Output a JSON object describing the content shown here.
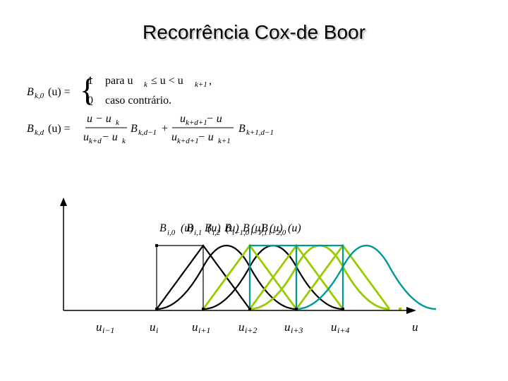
{
  "title": "Recorrência Cox-de Boor",
  "formula": {
    "lhs1": "B",
    "lhs1_sub": "k,0",
    "lhs1_arg": "(u) =",
    "case1_val": "1",
    "case1_cond_a": "para u",
    "case1_cond_b": "k",
    "case1_cond_c": "≤ u < u",
    "case1_cond_d": "k+1",
    "case1_cond_e": ",",
    "case2_val": "0",
    "case2_cond": "caso contrário.",
    "lhs2": "B",
    "lhs2_sub": "k,d",
    "lhs2_arg": "(u) =",
    "frac1_num": "u − u",
    "frac1_num_sub": "k",
    "frac1_den": "u",
    "frac1_den_sub1": "k+d",
    "frac1_den_mid": " − u",
    "frac1_den_sub2": "k",
    "term1": "B",
    "term1_sub": "k,d−1",
    "plus": "+",
    "frac2_num": "u",
    "frac2_num_sub": "k+d+1",
    "frac2_num_mid": " − u",
    "frac2_den": "u",
    "frac2_den_sub1": "k+d+1",
    "frac2_den_mid": " − u",
    "frac2_den_sub2": "k+1",
    "term2": "B",
    "term2_sub": "k+1,d−1"
  },
  "overlapping_label": {
    "labels": [
      {
        "base": "B",
        "sub": "i,0",
        "arg": "(u)"
      },
      {
        "base": "B",
        "sub": "i,1",
        "arg": "(u)"
      },
      {
        "base": "B",
        "sub": "i,2",
        "arg": "(u)"
      },
      {
        "base": "B",
        "sub": "i+1,0",
        "arg": "(u)"
      },
      {
        "base": "B",
        "sub": "i+1,1",
        "arg": "(u)"
      },
      {
        "base": "B",
        "sub": "i+2,0",
        "arg": "(u)"
      }
    ]
  },
  "axis": {
    "knots": [
      {
        "base": "u",
        "sub": "i−1"
      },
      {
        "base": "u",
        "sub": "i"
      },
      {
        "base": "u",
        "sub": "i+1"
      },
      {
        "base": "u",
        "sub": "i+2"
      },
      {
        "base": "u",
        "sub": "i+3"
      },
      {
        "base": "u",
        "sub": "i+4"
      }
    ],
    "var_label": "u"
  },
  "colors": {
    "black": "#000000",
    "green": "#99cc00",
    "teal": "#009999",
    "axis": "#000000"
  }
}
